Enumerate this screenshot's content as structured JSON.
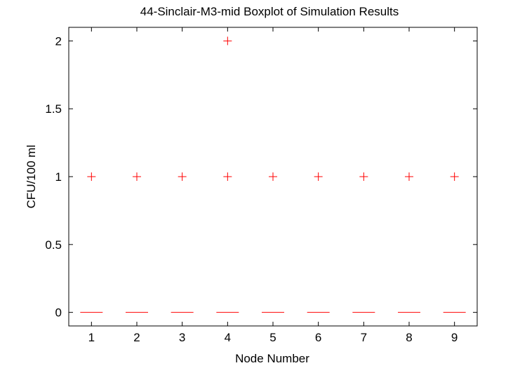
{
  "chart_data": {
    "type": "boxplot",
    "title": "44-Sinclair-M3-mid Boxplot of Simulation Results",
    "xlabel": "Node Number",
    "ylabel": "CFU/100 ml",
    "categories": [
      "1",
      "2",
      "3",
      "4",
      "5",
      "6",
      "7",
      "8",
      "9"
    ],
    "ylim": [
      -0.1,
      2.1
    ],
    "yticks": [
      0,
      0.5,
      1,
      1.5,
      2
    ],
    "ytick_labels": [
      "0",
      "0.5",
      "1",
      "1.5",
      "2"
    ],
    "grid": false,
    "boxes": [
      {
        "node": "1",
        "min": 0,
        "q1": 0,
        "median": 0,
        "q3": 0,
        "max": 0,
        "outliers": [
          1
        ]
      },
      {
        "node": "2",
        "min": 0,
        "q1": 0,
        "median": 0,
        "q3": 0,
        "max": 0,
        "outliers": [
          1
        ]
      },
      {
        "node": "3",
        "min": 0,
        "q1": 0,
        "median": 0,
        "q3": 0,
        "max": 0,
        "outliers": [
          1
        ]
      },
      {
        "node": "4",
        "min": 0,
        "q1": 0,
        "median": 0,
        "q3": 0,
        "max": 0,
        "outliers": [
          1,
          2
        ]
      },
      {
        "node": "5",
        "min": 0,
        "q1": 0,
        "median": 0,
        "q3": 0,
        "max": 0,
        "outliers": [
          1
        ]
      },
      {
        "node": "6",
        "min": 0,
        "q1": 0,
        "median": 0,
        "q3": 0,
        "max": 0,
        "outliers": [
          1
        ]
      },
      {
        "node": "7",
        "min": 0,
        "q1": 0,
        "median": 0,
        "q3": 0,
        "max": 0,
        "outliers": [
          1
        ]
      },
      {
        "node": "8",
        "min": 0,
        "q1": 0,
        "median": 0,
        "q3": 0,
        "max": 0,
        "outliers": [
          1
        ]
      },
      {
        "node": "9",
        "min": 0,
        "q1": 0,
        "median": 0,
        "q3": 0,
        "max": 0,
        "outliers": [
          1
        ]
      }
    ],
    "colors": {
      "median": "#ff0000",
      "outlier": "#ff0000",
      "axis": "#000000"
    }
  }
}
